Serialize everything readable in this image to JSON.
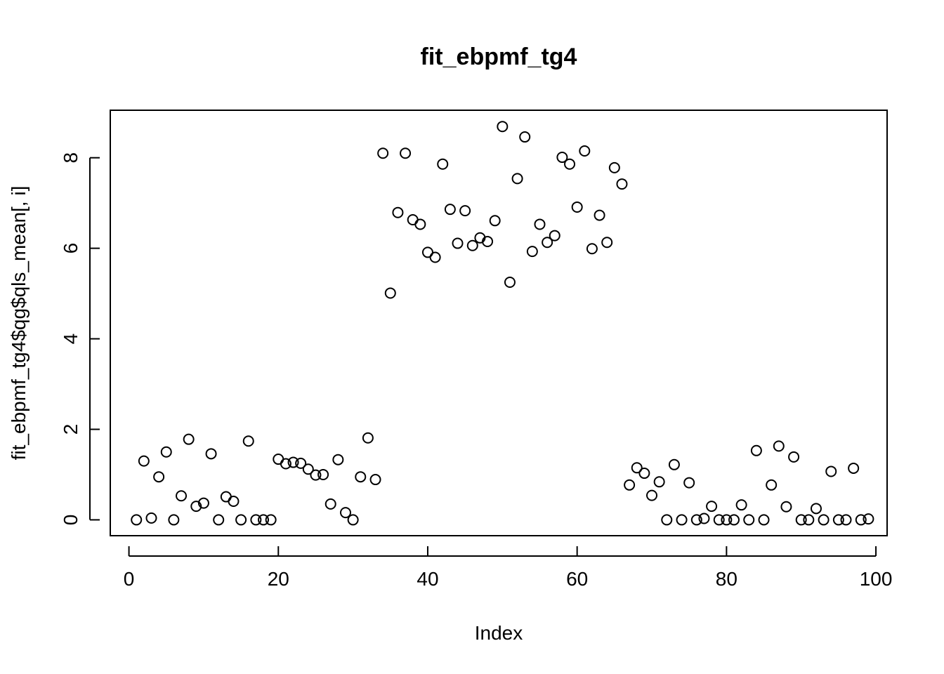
{
  "chart_data": {
    "type": "scatter",
    "title": "fit_ebpmf_tg4",
    "xlabel": "Index",
    "ylabel": "fit_ebpmf_tg4$qg$qls_mean[, i]",
    "xlim": [
      -2.5,
      101.5
    ],
    "ylim": [
      -0.35,
      9.05
    ],
    "xticks": [
      0,
      20,
      40,
      60,
      80,
      100
    ],
    "yticks": [
      0,
      2,
      4,
      6,
      8
    ],
    "grid": false,
    "legend": "none",
    "x": [
      1,
      2,
      3,
      4,
      5,
      6,
      7,
      8,
      9,
      10,
      11,
      12,
      13,
      14,
      15,
      16,
      17,
      18,
      19,
      20,
      21,
      22,
      23,
      24,
      25,
      26,
      27,
      28,
      29,
      30,
      31,
      32,
      33,
      34,
      35,
      36,
      37,
      38,
      39,
      40,
      41,
      42,
      43,
      44,
      45,
      46,
      47,
      48,
      49,
      50,
      51,
      52,
      53,
      54,
      55,
      56,
      57,
      58,
      59,
      60,
      61,
      62,
      63,
      64,
      65,
      66,
      67,
      68,
      69,
      70,
      71,
      72,
      73,
      74,
      75,
      76,
      77,
      78,
      79,
      80,
      81,
      82,
      83,
      84,
      85,
      86,
      87,
      88,
      89,
      90,
      91,
      92,
      93,
      94,
      95,
      96,
      97,
      98,
      99
    ],
    "y": [
      0.0,
      1.3,
      0.04,
      0.95,
      1.5,
      0.0,
      0.53,
      1.78,
      0.3,
      0.37,
      1.46,
      0.0,
      0.51,
      0.41,
      0.0,
      1.74,
      0.0,
      0.0,
      0.0,
      1.34,
      1.24,
      1.27,
      1.25,
      1.12,
      0.99,
      1.0,
      0.35,
      1.33,
      0.16,
      0.0,
      0.95,
      1.81,
      0.89,
      8.1,
      5.01,
      6.79,
      8.1,
      6.63,
      6.53,
      5.91,
      5.8,
      7.86,
      6.86,
      6.11,
      6.83,
      6.06,
      6.23,
      6.15,
      6.61,
      8.69,
      5.25,
      7.54,
      8.46,
      5.93,
      6.53,
      6.13,
      6.28,
      8.01,
      7.86,
      6.91,
      8.15,
      5.99,
      6.73,
      6.13,
      7.78,
      7.42,
      0.77,
      1.15,
      1.03,
      0.54,
      0.84,
      0.0,
      1.22,
      0.0,
      0.82,
      0.0,
      0.03,
      0.3,
      0.0,
      0.0,
      0.0,
      0.33,
      0.0,
      1.53,
      0.0,
      0.77,
      1.63,
      0.29,
      1.39,
      0.0,
      0.0,
      0.25,
      0.0,
      1.07,
      0.0,
      0.0,
      1.14,
      0.0,
      0.02
    ]
  }
}
